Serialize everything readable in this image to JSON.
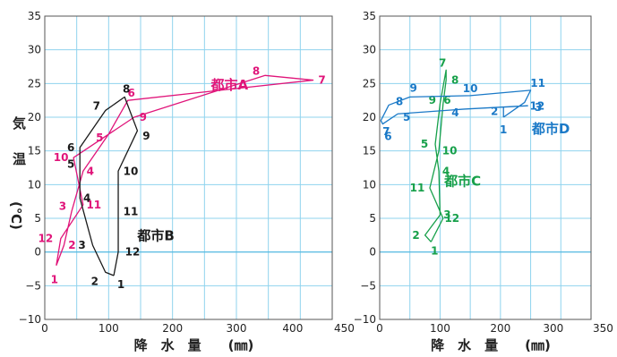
{
  "chart_data": [
    {
      "type": "line",
      "xlim": [
        0,
        450
      ],
      "ylim": [
        -10,
        35
      ],
      "x_ticks": [
        "0",
        "100",
        "200",
        "300",
        "400",
        "450"
      ],
      "x_tick_values": [
        0,
        100,
        200,
        300,
        400,
        450
      ],
      "y_ticks": [
        "35",
        "30",
        "25",
        "20",
        "15",
        "10",
        "5",
        "0",
        "−5",
        "−10"
      ],
      "y_tick_values": [
        35,
        30,
        25,
        20,
        15,
        10,
        5,
        0,
        -5,
        -10
      ],
      "grid": true,
      "series": [
        {
          "name": "都市A",
          "color": "#e0157a",
          "points": [
            {
              "label": "1",
              "x": 18,
              "y": -2
            },
            {
              "label": "2",
              "x": 30,
              "y": 1
            },
            {
              "label": "3",
              "x": 42,
              "y": 6
            },
            {
              "label": "4",
              "x": 60,
              "y": 12
            },
            {
              "label": "5",
              "x": 100,
              "y": 17.5
            },
            {
              "label": "6",
              "x": 130,
              "y": 22.5
            },
            {
              "label": "7",
              "x": 420,
              "y": 25.5
            },
            {
              "label": "8",
              "x": 345,
              "y": 26.2
            },
            {
              "label": "9",
              "x": 140,
              "y": 20
            },
            {
              "label": "10",
              "x": 45,
              "y": 14
            },
            {
              "label": "11",
              "x": 60,
              "y": 7
            },
            {
              "label": "12",
              "x": 25,
              "y": 2
            }
          ]
        },
        {
          "name": "都市B",
          "color": "#1a1a1a",
          "points": [
            {
              "label": "1",
              "x": 108,
              "y": -3.5
            },
            {
              "label": "2",
              "x": 95,
              "y": -3
            },
            {
              "label": "3",
              "x": 75,
              "y": 1
            },
            {
              "label": "4",
              "x": 55,
              "y": 8
            },
            {
              "label": "5",
              "x": 55,
              "y": 13
            },
            {
              "label": "6",
              "x": 55,
              "y": 15.5
            },
            {
              "label": "7",
              "x": 95,
              "y": 21
            },
            {
              "label": "8",
              "x": 125,
              "y": 23
            },
            {
              "label": "9",
              "x": 145,
              "y": 18
            },
            {
              "label": "10",
              "x": 115,
              "y": 12
            },
            {
              "label": "11",
              "x": 115,
              "y": 6
            },
            {
              "label": "12",
              "x": 115,
              "y": 0
            }
          ]
        }
      ],
      "city_labels": [
        {
          "text": "都市A",
          "x": 260,
          "y": 24.8,
          "color": "#e0157a"
        },
        {
          "text": "都市B",
          "x": 145,
          "y": 2.4,
          "color": "#1a1a1a"
        }
      ],
      "xlabel": "降　水　量　　(㎜)",
      "ylabel": "気温(℃)"
    },
    {
      "type": "line",
      "xlim": [
        0,
        350
      ],
      "ylim": [
        -10,
        35
      ],
      "x_ticks": [
        "0",
        "100",
        "200",
        "300",
        "350"
      ],
      "x_tick_values": [
        0,
        100,
        200,
        300,
        350
      ],
      "y_ticks": [
        "35",
        "30",
        "25",
        "20",
        "15",
        "10",
        "5",
        "0",
        "−5",
        "−10"
      ],
      "y_tick_values": [
        35,
        30,
        25,
        20,
        15,
        10,
        5,
        0,
        -5,
        -10
      ],
      "grid": true,
      "series": [
        {
          "name": "都市C",
          "color": "#17a04a",
          "points": [
            {
              "label": "1",
              "x": 85,
              "y": 1.5
            },
            {
              "label": "2",
              "x": 75,
              "y": 2.5
            },
            {
              "label": "3",
              "x": 100,
              "y": 5.5
            },
            {
              "label": "4",
              "x": 98,
              "y": 12
            },
            {
              "label": "5",
              "x": 92,
              "y": 16
            },
            {
              "label": "6",
              "x": 100,
              "y": 22
            },
            {
              "label": "7",
              "x": 110,
              "y": 27
            },
            {
              "label": "8",
              "x": 110,
              "y": 25.5
            },
            {
              "label": "9",
              "x": 105,
              "y": 22
            },
            {
              "label": "10",
              "x": 98,
              "y": 15
            },
            {
              "label": "11",
              "x": 83,
              "y": 9.5
            },
            {
              "label": "12",
              "x": 105,
              "y": 5
            }
          ]
        },
        {
          "name": "都市D",
          "color": "#1a79c7",
          "points": [
            {
              "label": "1",
              "x": 205,
              "y": 20
            },
            {
              "label": "2",
              "x": 205,
              "y": 21.5
            },
            {
              "label": "3",
              "x": 245,
              "y": 21.7
            },
            {
              "label": "4",
              "x": 140,
              "y": 21.2
            },
            {
              "label": "5",
              "x": 30,
              "y": 20.5
            },
            {
              "label": "6",
              "x": 5,
              "y": 19
            },
            {
              "label": "7",
              "x": 2,
              "y": 19.5
            },
            {
              "label": "8",
              "x": 15,
              "y": 21.8
            },
            {
              "label": "9",
              "x": 50,
              "y": 23
            },
            {
              "label": "10",
              "x": 150,
              "y": 23.2
            },
            {
              "label": "11",
              "x": 250,
              "y": 24
            },
            {
              "label": "12",
              "x": 240,
              "y": 22.2
            }
          ]
        }
      ],
      "city_labels": [
        {
          "text": "都市C",
          "x": 107,
          "y": 10.5,
          "color": "#17a04a"
        },
        {
          "text": "都市D",
          "x": 252,
          "y": 18.3,
          "color": "#1a79c7"
        }
      ],
      "xlabel": "降　水　量　　(㎜)",
      "ylabel": ""
    }
  ]
}
